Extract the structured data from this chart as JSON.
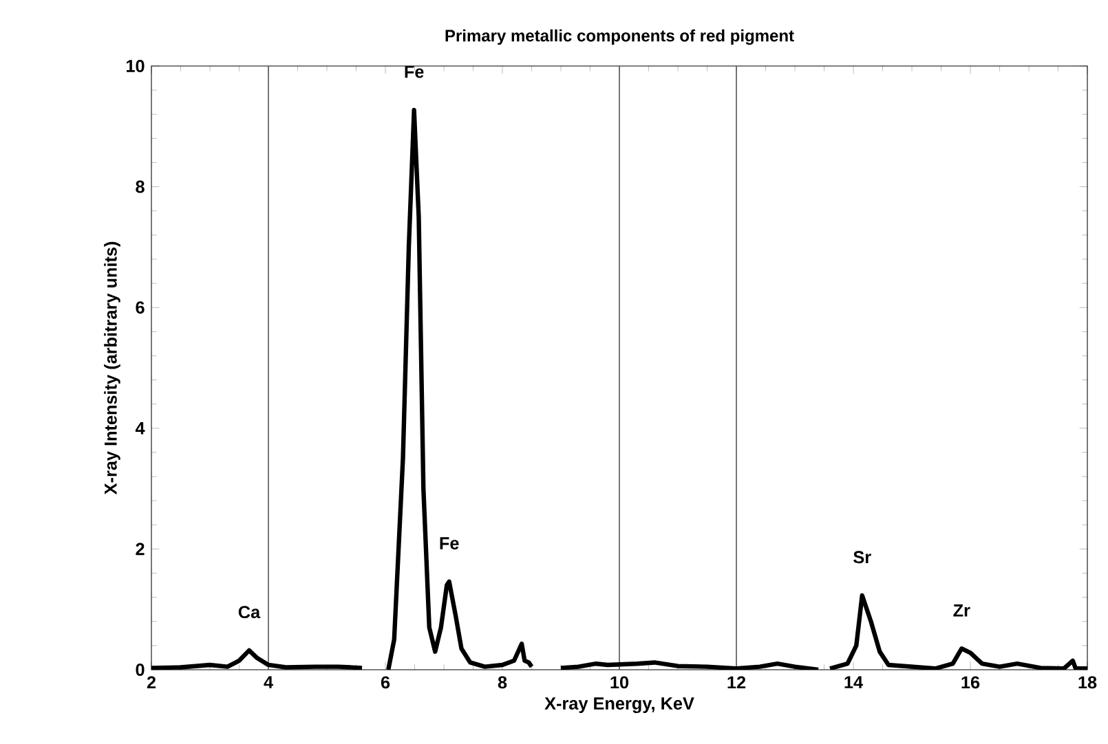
{
  "chart_data": {
    "type": "line",
    "title": "Primary metallic components of red pigment",
    "xlabel": "X-ray Energy, KeV",
    "ylabel": "X-ray Intensity (arbitrary units)",
    "xlim": [
      2,
      18
    ],
    "ylim": [
      0,
      10
    ],
    "xticks": [
      2,
      4,
      6,
      8,
      10,
      12,
      14,
      16,
      18
    ],
    "yticks": [
      0,
      2,
      4,
      6,
      8,
      10
    ],
    "marker": "none",
    "line_style": "solid",
    "ref_lines": [
      {
        "axis": "x",
        "value": 4,
        "color": "#555555"
      },
      {
        "axis": "x",
        "value": 10,
        "color": "#555555"
      },
      {
        "axis": "x",
        "value": 12,
        "color": "#555555"
      }
    ],
    "annotations": [
      {
        "text": "Fe",
        "x": 6.49,
        "y": 9.27
      },
      {
        "text": "Fe",
        "x": 7.09,
        "y": 1.46
      },
      {
        "text": "Ca",
        "x": 3.67,
        "y": 0.32
      },
      {
        "text": "Sr",
        "x": 14.15,
        "y": 1.23
      },
      {
        "text": "Zr",
        "x": 15.85,
        "y": 0.35
      }
    ],
    "series": [
      {
        "color": "#000000",
        "x": [
          2.0,
          2.5,
          3.0,
          3.3,
          3.5,
          3.67,
          3.8,
          4.0,
          4.3,
          4.8,
          5.2,
          5.6,
          5.8,
          6.05,
          6.15,
          6.3,
          6.4,
          6.49,
          6.57,
          6.65,
          6.75,
          6.85,
          6.95,
          7.05,
          7.09,
          7.2,
          7.3,
          7.45,
          7.7,
          8.0,
          8.2,
          8.33,
          8.38,
          8.45,
          8.5,
          8.7,
          9.0,
          9.3,
          9.6,
          9.8,
          10.3,
          10.6,
          11.0,
          11.5,
          12.0,
          12.4,
          12.7,
          13.0,
          13.4,
          13.5,
          13.6,
          13.9,
          14.05,
          14.15,
          14.3,
          14.45,
          14.6,
          15.0,
          15.4,
          15.7,
          15.85,
          16.0,
          16.2,
          16.5,
          16.8,
          17.2,
          17.6,
          17.75,
          17.8,
          18.0
        ],
        "values": [
          0.03,
          0.04,
          0.08,
          0.05,
          0.15,
          0.32,
          0.2,
          0.08,
          0.04,
          0.05,
          0.05,
          0.03,
          null,
          0.0,
          0.5,
          3.5,
          7.0,
          9.27,
          7.5,
          3.0,
          0.7,
          0.3,
          0.7,
          1.4,
          1.46,
          0.9,
          0.35,
          0.12,
          0.05,
          0.08,
          0.15,
          0.43,
          0.15,
          0.12,
          0.05,
          null,
          0.03,
          0.05,
          0.1,
          0.08,
          0.1,
          0.12,
          0.06,
          0.05,
          0.02,
          0.05,
          0.1,
          0.05,
          0.0,
          null,
          0.02,
          0.1,
          0.4,
          1.23,
          0.8,
          0.3,
          0.08,
          0.05,
          0.02,
          0.1,
          0.35,
          0.28,
          0.1,
          0.05,
          0.1,
          0.03,
          0.02,
          0.15,
          0.02,
          0.02
        ]
      }
    ]
  }
}
